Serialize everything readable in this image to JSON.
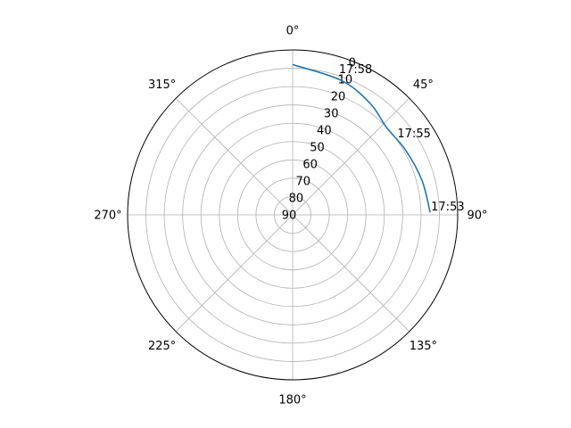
{
  "chart_data": {
    "type": "line",
    "projection": "polar",
    "theta_zero_location": "top",
    "theta_direction": "clockwise",
    "radial_axis": "zenith-angle (reversed: 0 at outer edge, 90 at center)",
    "rlim": [
      0,
      90
    ],
    "grid": true,
    "legend": "none",
    "theta_tick_labels": [
      "0°",
      "45°",
      "90°",
      "135°",
      "180°",
      "225°",
      "270°",
      "315°"
    ],
    "theta_tick_values": [
      0,
      45,
      90,
      135,
      180,
      225,
      270,
      315
    ],
    "r_tick_labels": [
      "0",
      "10",
      "20",
      "30",
      "40",
      "50",
      "60",
      "70",
      "80",
      "90"
    ],
    "r_tick_values": [
      0,
      10,
      20,
      30,
      40,
      50,
      60,
      70,
      80,
      90
    ],
    "series": [
      {
        "color": "#1f77b4",
        "points": [
          {
            "azimuth": 89,
            "altitude": 15
          },
          {
            "azimuth": 75,
            "altitude": 17
          },
          {
            "azimuth": 60,
            "altitude": 19
          },
          {
            "azimuth": 47,
            "altitude": 20
          },
          {
            "azimuth": 35,
            "altitude": 16
          },
          {
            "azimuth": 20,
            "altitude": 12
          },
          {
            "azimuth": 0,
            "altitude": 8
          }
        ]
      }
    ],
    "annotations": [
      {
        "text": "17:53",
        "azimuth": 89,
        "altitude": 15
      },
      {
        "text": "17:55",
        "azimuth": 54,
        "altitude": 20
      },
      {
        "text": "17:58",
        "azimuth": 18,
        "altitude": 10
      }
    ]
  }
}
